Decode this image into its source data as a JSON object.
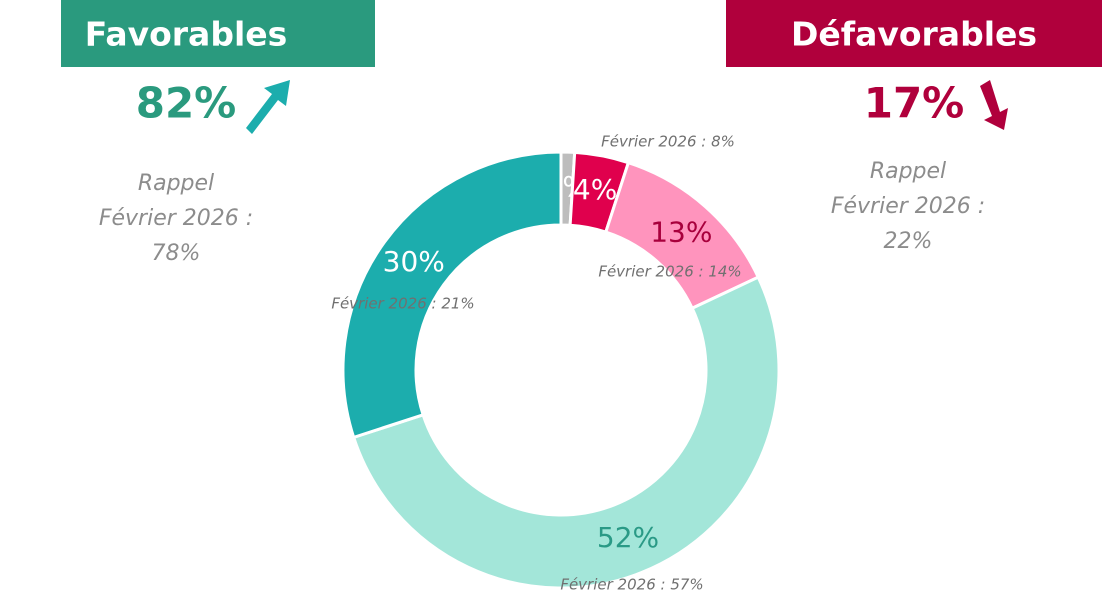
{
  "chart_data": {
    "type": "donut",
    "values": [
      1,
      4,
      13,
      52,
      30
    ],
    "value_labels": [
      "1%",
      "4%",
      "13%",
      "52%",
      "30%"
    ],
    "colors": [
      "#bdbdbd",
      "#e0004d",
      "#ff94bd",
      "#a3e6d9",
      "#1cadad"
    ],
    "label_colors": [
      "#ffffff",
      "#ffffff",
      "#a8003c",
      "#2a9a86",
      "#ffffff"
    ],
    "previous_labels": [
      null,
      "Février 2026 : 8%",
      "Février 2026 : 14%",
      "Février 2026 : 57%",
      "Février 2026 : 21%"
    ],
    "panels": [
      {
        "title": "Favorables",
        "value": "82%",
        "recall": [
          "Rappel",
          "Février 2026 :",
          "78%"
        ]
      },
      {
        "title": "Défavorables",
        "value": "17%",
        "recall": [
          "Rappel",
          "Février 2026 :",
          "22%"
        ]
      }
    ]
  }
}
